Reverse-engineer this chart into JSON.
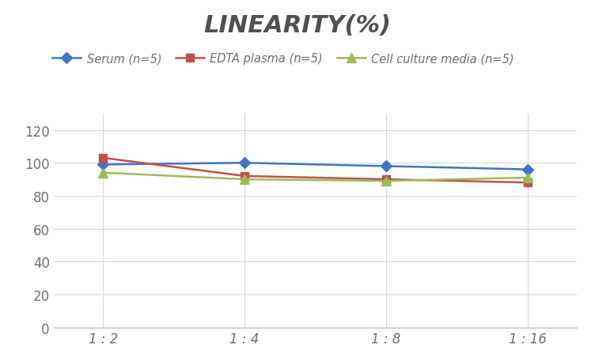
{
  "title": "LINEARITY(%)",
  "x_labels": [
    "1 : 2",
    "1 : 4",
    "1 : 8",
    "1 : 16"
  ],
  "x_positions": [
    0,
    1,
    2,
    3
  ],
  "series": [
    {
      "label": "Serum (n=5)",
      "values": [
        99,
        100,
        98,
        96
      ],
      "color": "#4472C4",
      "marker": "D",
      "markersize": 7,
      "linewidth": 1.8
    },
    {
      "label": "EDTA plasma (n=5)",
      "values": [
        103,
        92,
        90,
        88
      ],
      "color": "#C0504D",
      "marker": "s",
      "markersize": 7,
      "linewidth": 1.8
    },
    {
      "label": "Cell culture media (n=5)",
      "values": [
        94,
        90,
        89,
        91
      ],
      "color": "#9BBB59",
      "marker": "^",
      "markersize": 8,
      "linewidth": 1.8
    }
  ],
  "ylim": [
    0,
    130
  ],
  "yticks": [
    0,
    20,
    40,
    60,
    80,
    100,
    120
  ],
  "background_color": "#FFFFFF",
  "title_fontsize": 22,
  "title_style": "italic",
  "title_weight": "bold",
  "title_color": "#505050",
  "legend_fontsize": 10.5,
  "tick_fontsize": 12,
  "grid_color": "#D8D8D8",
  "grid_linewidth": 0.8,
  "tick_color": "#707070"
}
